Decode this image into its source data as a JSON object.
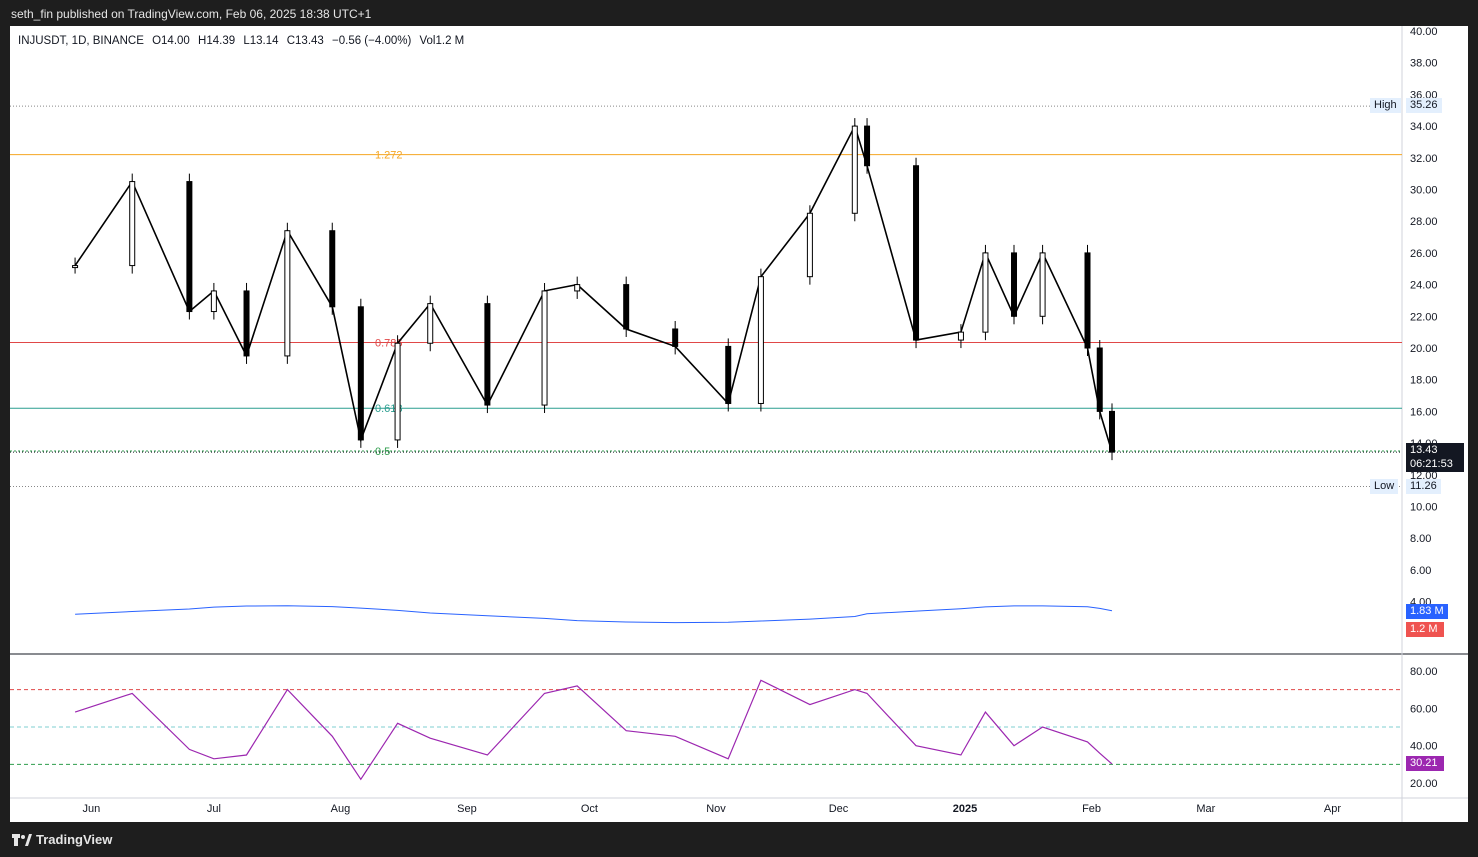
{
  "header": {
    "published": "seth_fin published on TradingView.com, Feb 06, 2025 18:38 UTC+1"
  },
  "legend": {
    "symbol": "INJUSDT, 1D, BINANCE",
    "open": "O14.00",
    "high": "H14.39",
    "low": "L13.14",
    "close": "C13.43",
    "change": "−0.56 (−4.00%)",
    "volume": "Vol1.2 M"
  },
  "price_axis": {
    "ticks": [
      "40.00",
      "38.00",
      "36.00",
      "34.00",
      "32.00",
      "30.00",
      "28.00",
      "26.00",
      "24.00",
      "22.00",
      "20.00",
      "18.00",
      "16.00",
      "14.00",
      "12.00",
      "10.00",
      "8.00",
      "6.00",
      "4.00"
    ],
    "high_label": "High",
    "high_value": "35.26",
    "low_label": "Low",
    "low_value": "11.26",
    "last_price": "13.43",
    "countdown": "06:21:53"
  },
  "volume_axis": {
    "ma_value": "1.83 M",
    "volume_value": "1.2 M"
  },
  "rsi_axis": {
    "ticks": [
      "80.00",
      "60.00",
      "40.00",
      "20.00"
    ],
    "value": "30.21"
  },
  "time_axis": [
    "Jun",
    "Jul",
    "Aug",
    "Sep",
    "Oct",
    "Nov",
    "Dec",
    "2025",
    "Feb",
    "Mar",
    "Apr"
  ],
  "fib_levels": [
    {
      "label": "1.272",
      "price": 32.2,
      "color": "#f5a623"
    },
    {
      "label": "0.786",
      "price": 20.35,
      "color": "#e04848"
    },
    {
      "label": "0.618",
      "price": 16.2,
      "color": "#2a9d8f"
    },
    {
      "label": "0.5",
      "price": 13.5,
      "color": "#2e9d4c"
    }
  ],
  "colors": {
    "up": "#26a69a",
    "down": "#ef5350",
    "candle": "#000000",
    "rsi": "#9c27b0",
    "ma": "#2962ff"
  },
  "footer": {
    "brand": "TradingView"
  },
  "chart_data": {
    "type": "candlestick",
    "symbol": "INJUSDT",
    "interval": "1D",
    "x": [
      "2024-05-28",
      "2024-06-11",
      "2024-06-25",
      "2024-07-01",
      "2024-07-09",
      "2024-07-19",
      "2024-07-30",
      "2024-08-06",
      "2024-08-15",
      "2024-08-23",
      "2024-09-06",
      "2024-09-20",
      "2024-09-28",
      "2024-10-10",
      "2024-10-22",
      "2024-11-04",
      "2024-11-12",
      "2024-11-24",
      "2024-12-05",
      "2024-12-08",
      "2024-12-20",
      "2024-12-31",
      "2025-01-06",
      "2025-01-13",
      "2025-01-20",
      "2025-01-31",
      "2025-02-03",
      "2025-02-06"
    ],
    "close": [
      25.2,
      30.5,
      22.3,
      23.6,
      19.5,
      27.4,
      22.6,
      14.2,
      20.3,
      22.8,
      16.4,
      23.6,
      24.0,
      21.2,
      20.1,
      16.5,
      24.5,
      28.5,
      34.0,
      31.5,
      20.5,
      21.0,
      26.0,
      22.0,
      26.0,
      20.0,
      16.0,
      13.43
    ],
    "ylim": [
      4,
      40
    ],
    "high": 35.26,
    "low": 11.26,
    "volume_ma": 1.83,
    "volume_last": 1.2,
    "rsi": [
      58,
      68,
      38,
      33,
      35,
      70,
      45,
      22,
      52,
      44,
      35,
      68,
      72,
      48,
      45,
      33,
      75,
      62,
      70,
      68,
      40,
      35,
      58,
      40,
      50,
      42,
      36,
      30.21
    ],
    "rsi_ylim": [
      12,
      88
    ],
    "fib_levels": [
      {
        "ratio": "1.272",
        "price": 32.2
      },
      {
        "ratio": "0.786",
        "price": 20.35
      },
      {
        "ratio": "0.618",
        "price": 16.2
      },
      {
        "ratio": "0.5",
        "price": 13.5
      }
    ]
  }
}
